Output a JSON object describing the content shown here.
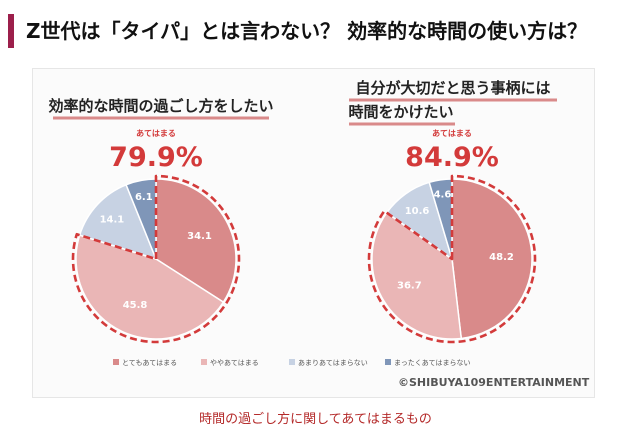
{
  "headline": "Z世代は「タイパ」とは言わない？ 効率的な時間の使い方は？",
  "caption": "時間の過ごし方に関してあてはまるもの",
  "copyright": "©SHIBUYA109ENTERTAINMENT",
  "colors": {
    "series": [
      "#d98a8a",
      "#eab6b6",
      "#c7d2e3",
      "#7f96b8"
    ],
    "highlight": "#d33a3a",
    "title_underline": "#d98a8a",
    "headline_bar": "#9c1f4b"
  },
  "chart_data": [
    {
      "type": "pie",
      "title": "効率的な時間の過ごし方をしたい",
      "highlight_label": "あてはまる",
      "highlight_value": "79.9%",
      "categories": [
        "とてもあてはまる",
        "ややあてはまる",
        "あまりあてはまらない",
        "まったくあてはまらない"
      ],
      "values": [
        34.1,
        45.8,
        14.1,
        6.1
      ],
      "value_labels": [
        "34.1",
        "45.8",
        "14.1",
        "6.1"
      ],
      "highlighted_slices": [
        0,
        1
      ]
    },
    {
      "type": "pie",
      "title": [
        "自分が大切だと思う事柄には",
        "時間をかけたい"
      ],
      "highlight_label": "あてはまる",
      "highlight_value": "84.9%",
      "categories": [
        "とてもあてはまる",
        "ややあてはまる",
        "あまりあてはまらない",
        "まったくあてはまらない"
      ],
      "values": [
        48.2,
        36.7,
        10.6,
        4.6
      ],
      "value_labels": [
        "48.2",
        "36.7",
        "10.6",
        "4.6"
      ],
      "highlighted_slices": [
        0,
        1
      ]
    }
  ],
  "legend": {
    "position": "bottom",
    "items": [
      "とてもあてはまる",
      "ややあてはまる",
      "あまりあてはまらない",
      "まったくあてはまらない"
    ]
  }
}
